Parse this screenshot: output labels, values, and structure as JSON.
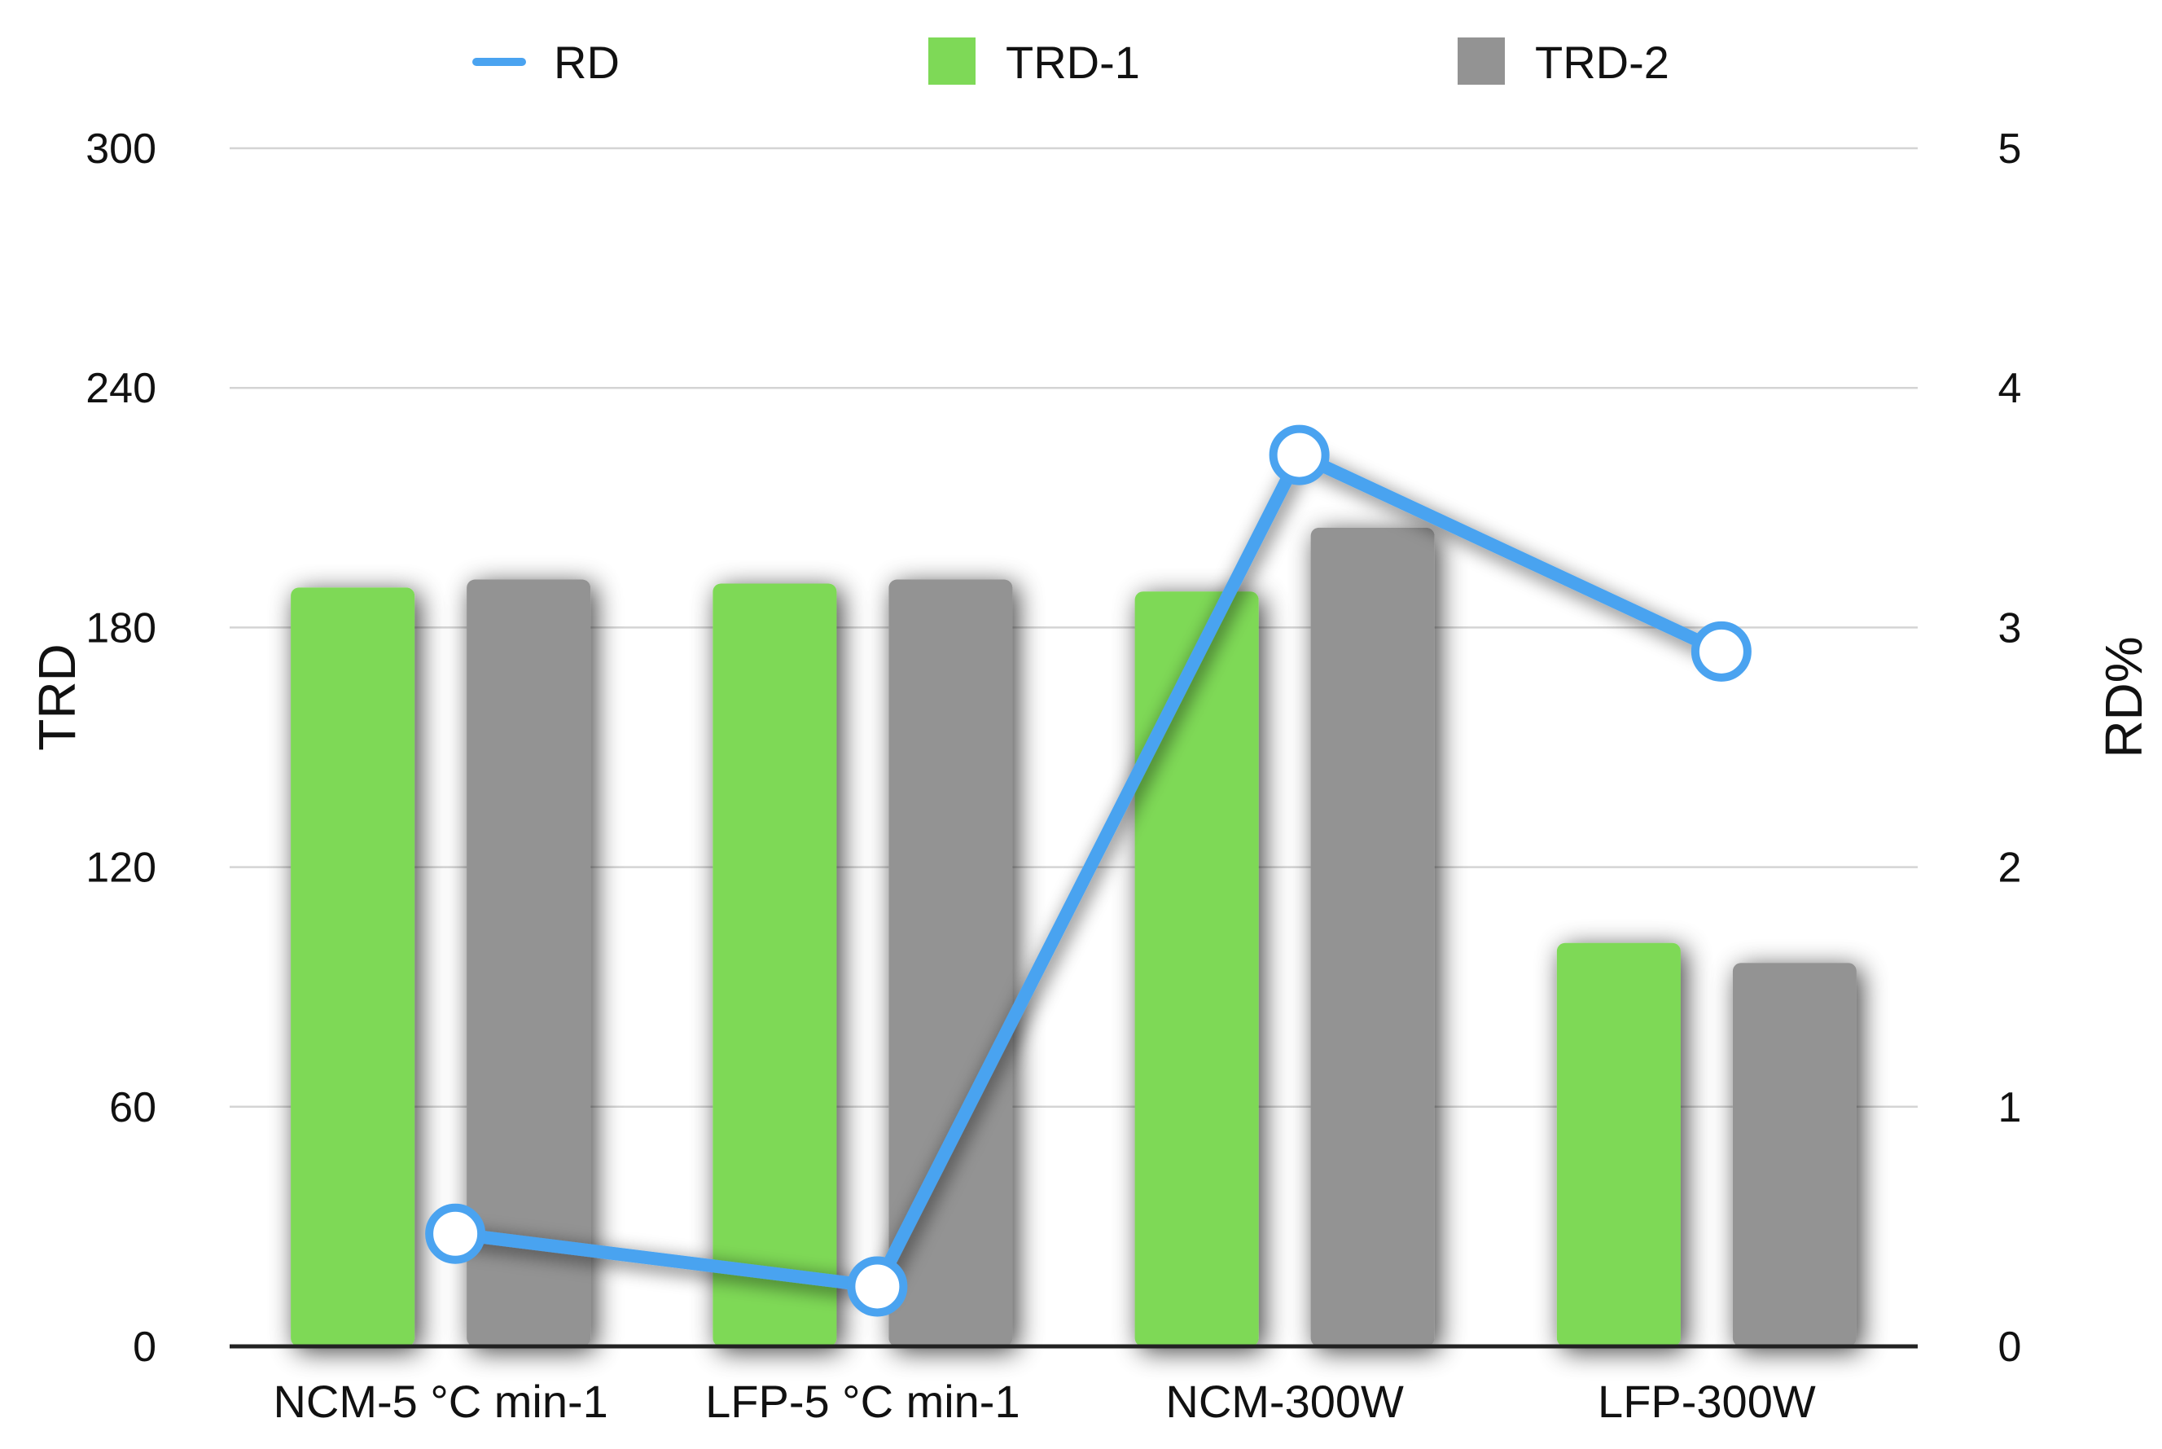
{
  "chart_data": {
    "type": "bar",
    "categories": [
      "NCM-5 °C min-1",
      "LFP-5 °C min-1",
      "NCM-300W",
      "LFP-300W"
    ],
    "series": [
      {
        "name": "TRD-1",
        "type": "bar",
        "axis": "left",
        "color": "#7ed957",
        "values": [
          190,
          191,
          189,
          101
        ]
      },
      {
        "name": "TRD-2",
        "type": "bar",
        "axis": "left",
        "color": "#939393",
        "values": [
          192,
          192,
          205,
          96
        ]
      },
      {
        "name": "RD",
        "type": "line",
        "axis": "right",
        "color": "#4aa3f0",
        "values": [
          0.47,
          0.25,
          3.72,
          2.9
        ]
      }
    ],
    "legend_order": [
      "RD",
      "TRD-1",
      "TRD-2"
    ],
    "legend_position": "top",
    "ylabel": "TRD",
    "ylabel_right": "RD%",
    "ylim": [
      0,
      300
    ],
    "ylim_right": [
      0,
      5
    ],
    "yticks": [
      "0",
      "60",
      "120",
      "180",
      "240",
      "300"
    ],
    "yticks_right": [
      "0",
      "1",
      "2",
      "3",
      "4",
      "5"
    ],
    "grid": true
  }
}
